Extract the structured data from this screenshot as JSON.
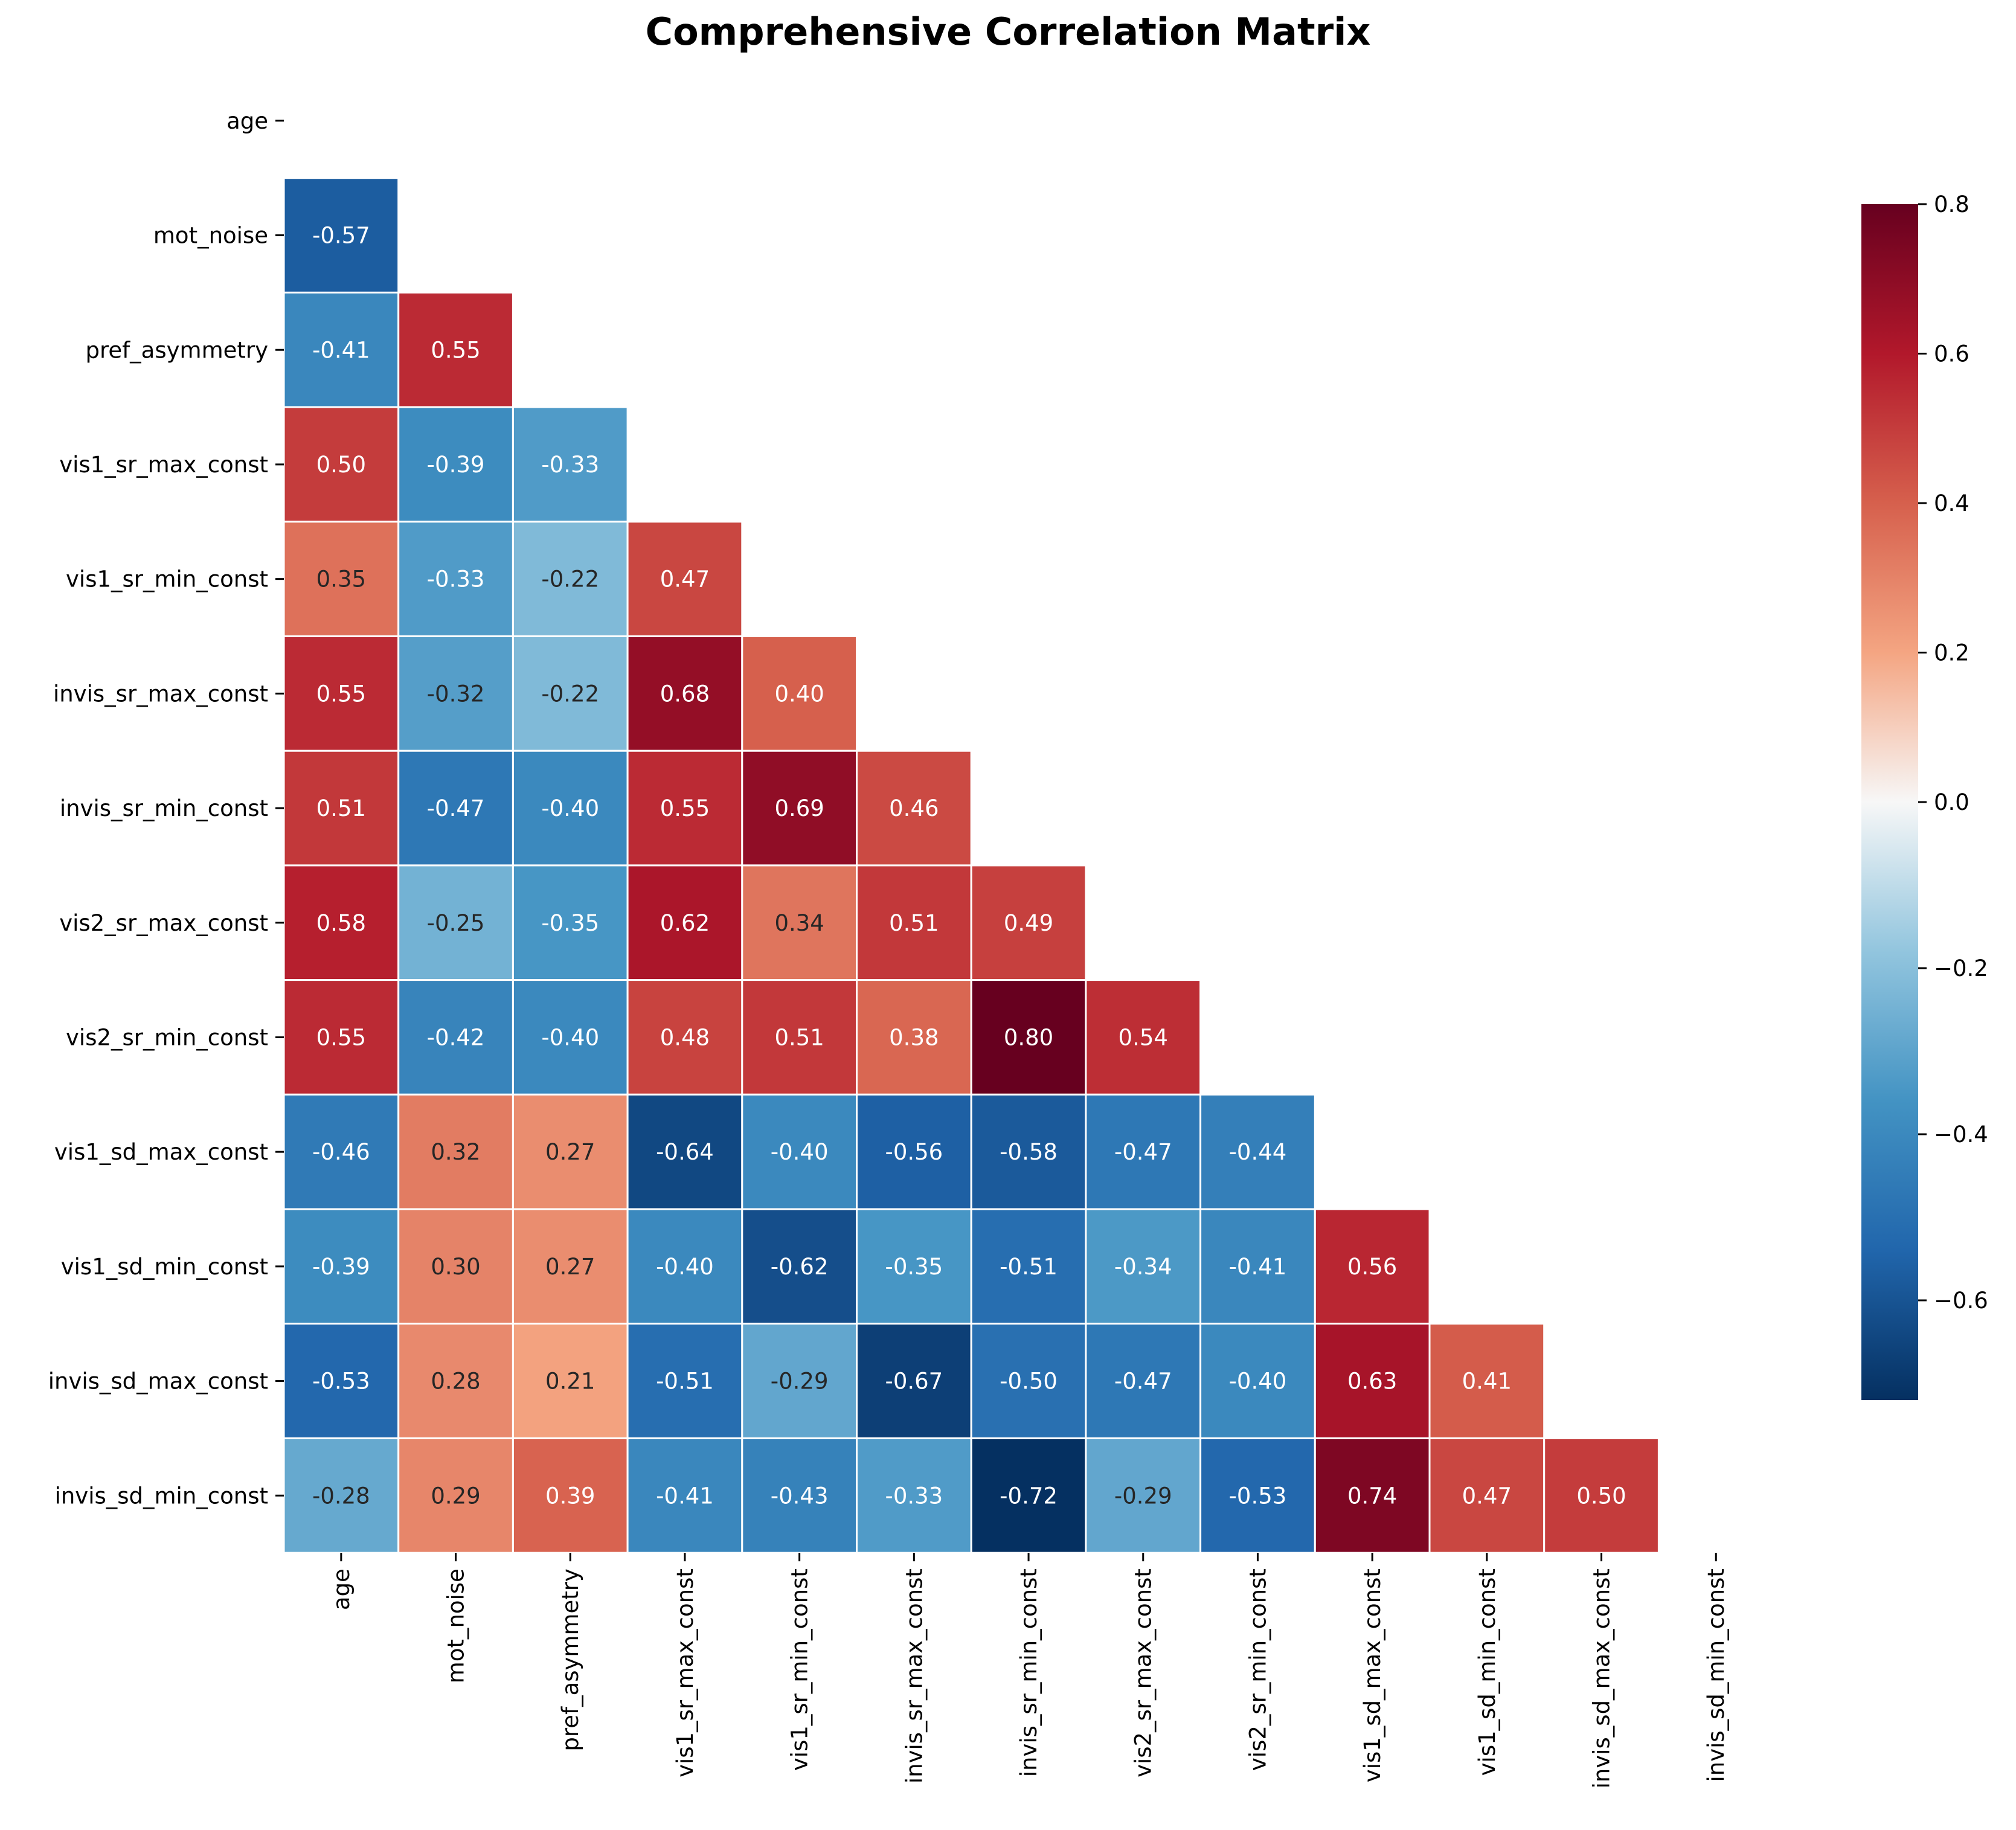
{
  "chart_data": {
    "type": "heatmap",
    "title": "Comprehensive Correlation Matrix",
    "variables": [
      "age",
      "mot_noise",
      "pref_asymmetry",
      "vis1_sr_max_const",
      "vis1_sr_min_const",
      "invis_sr_max_const",
      "invis_sr_min_const",
      "vis2_sr_max_const",
      "vis2_sr_min_const",
      "vis1_sd_max_const",
      "vis1_sd_min_const",
      "invis_sd_max_const",
      "invis_sd_min_const"
    ],
    "mask": "upper triangle including diagonal",
    "values": [
      [],
      [
        -0.57
      ],
      [
        -0.41,
        0.55
      ],
      [
        0.5,
        -0.39,
        -0.33
      ],
      [
        0.35,
        -0.33,
        -0.22,
        0.47
      ],
      [
        0.55,
        -0.32,
        -0.22,
        0.68,
        0.4
      ],
      [
        0.51,
        -0.47,
        -0.4,
        0.55,
        0.69,
        0.46
      ],
      [
        0.58,
        -0.25,
        -0.35,
        0.62,
        0.34,
        0.51,
        0.49
      ],
      [
        0.55,
        -0.42,
        -0.4,
        0.48,
        0.51,
        0.38,
        0.8,
        0.54
      ],
      [
        -0.46,
        0.32,
        0.27,
        -0.64,
        -0.4,
        -0.56,
        -0.58,
        -0.47,
        -0.44
      ],
      [
        -0.39,
        0.3,
        0.27,
        -0.4,
        -0.62,
        -0.35,
        -0.51,
        -0.34,
        -0.41,
        0.56
      ],
      [
        -0.53,
        0.28,
        0.21,
        -0.51,
        -0.29,
        -0.67,
        -0.5,
        -0.47,
        -0.4,
        0.63,
        0.41
      ],
      [
        -0.28,
        0.29,
        0.39,
        -0.41,
        -0.43,
        -0.33,
        -0.72,
        -0.29,
        -0.53,
        0.74,
        0.47,
        0.5
      ]
    ],
    "colormap": "RdBu_r",
    "vmin": -0.72,
    "vmax": 0.8,
    "colorbar": {
      "ticks": [
        0.8,
        0.6,
        0.4,
        0.2,
        0.0,
        -0.2,
        -0.4,
        -0.6
      ],
      "tick_labels": [
        "0.8",
        "0.6",
        "0.4",
        "0.2",
        "0.0",
        "−0.2",
        "−0.4",
        "−0.6"
      ]
    },
    "annotation_format": "2 decimals",
    "grid": false
  }
}
